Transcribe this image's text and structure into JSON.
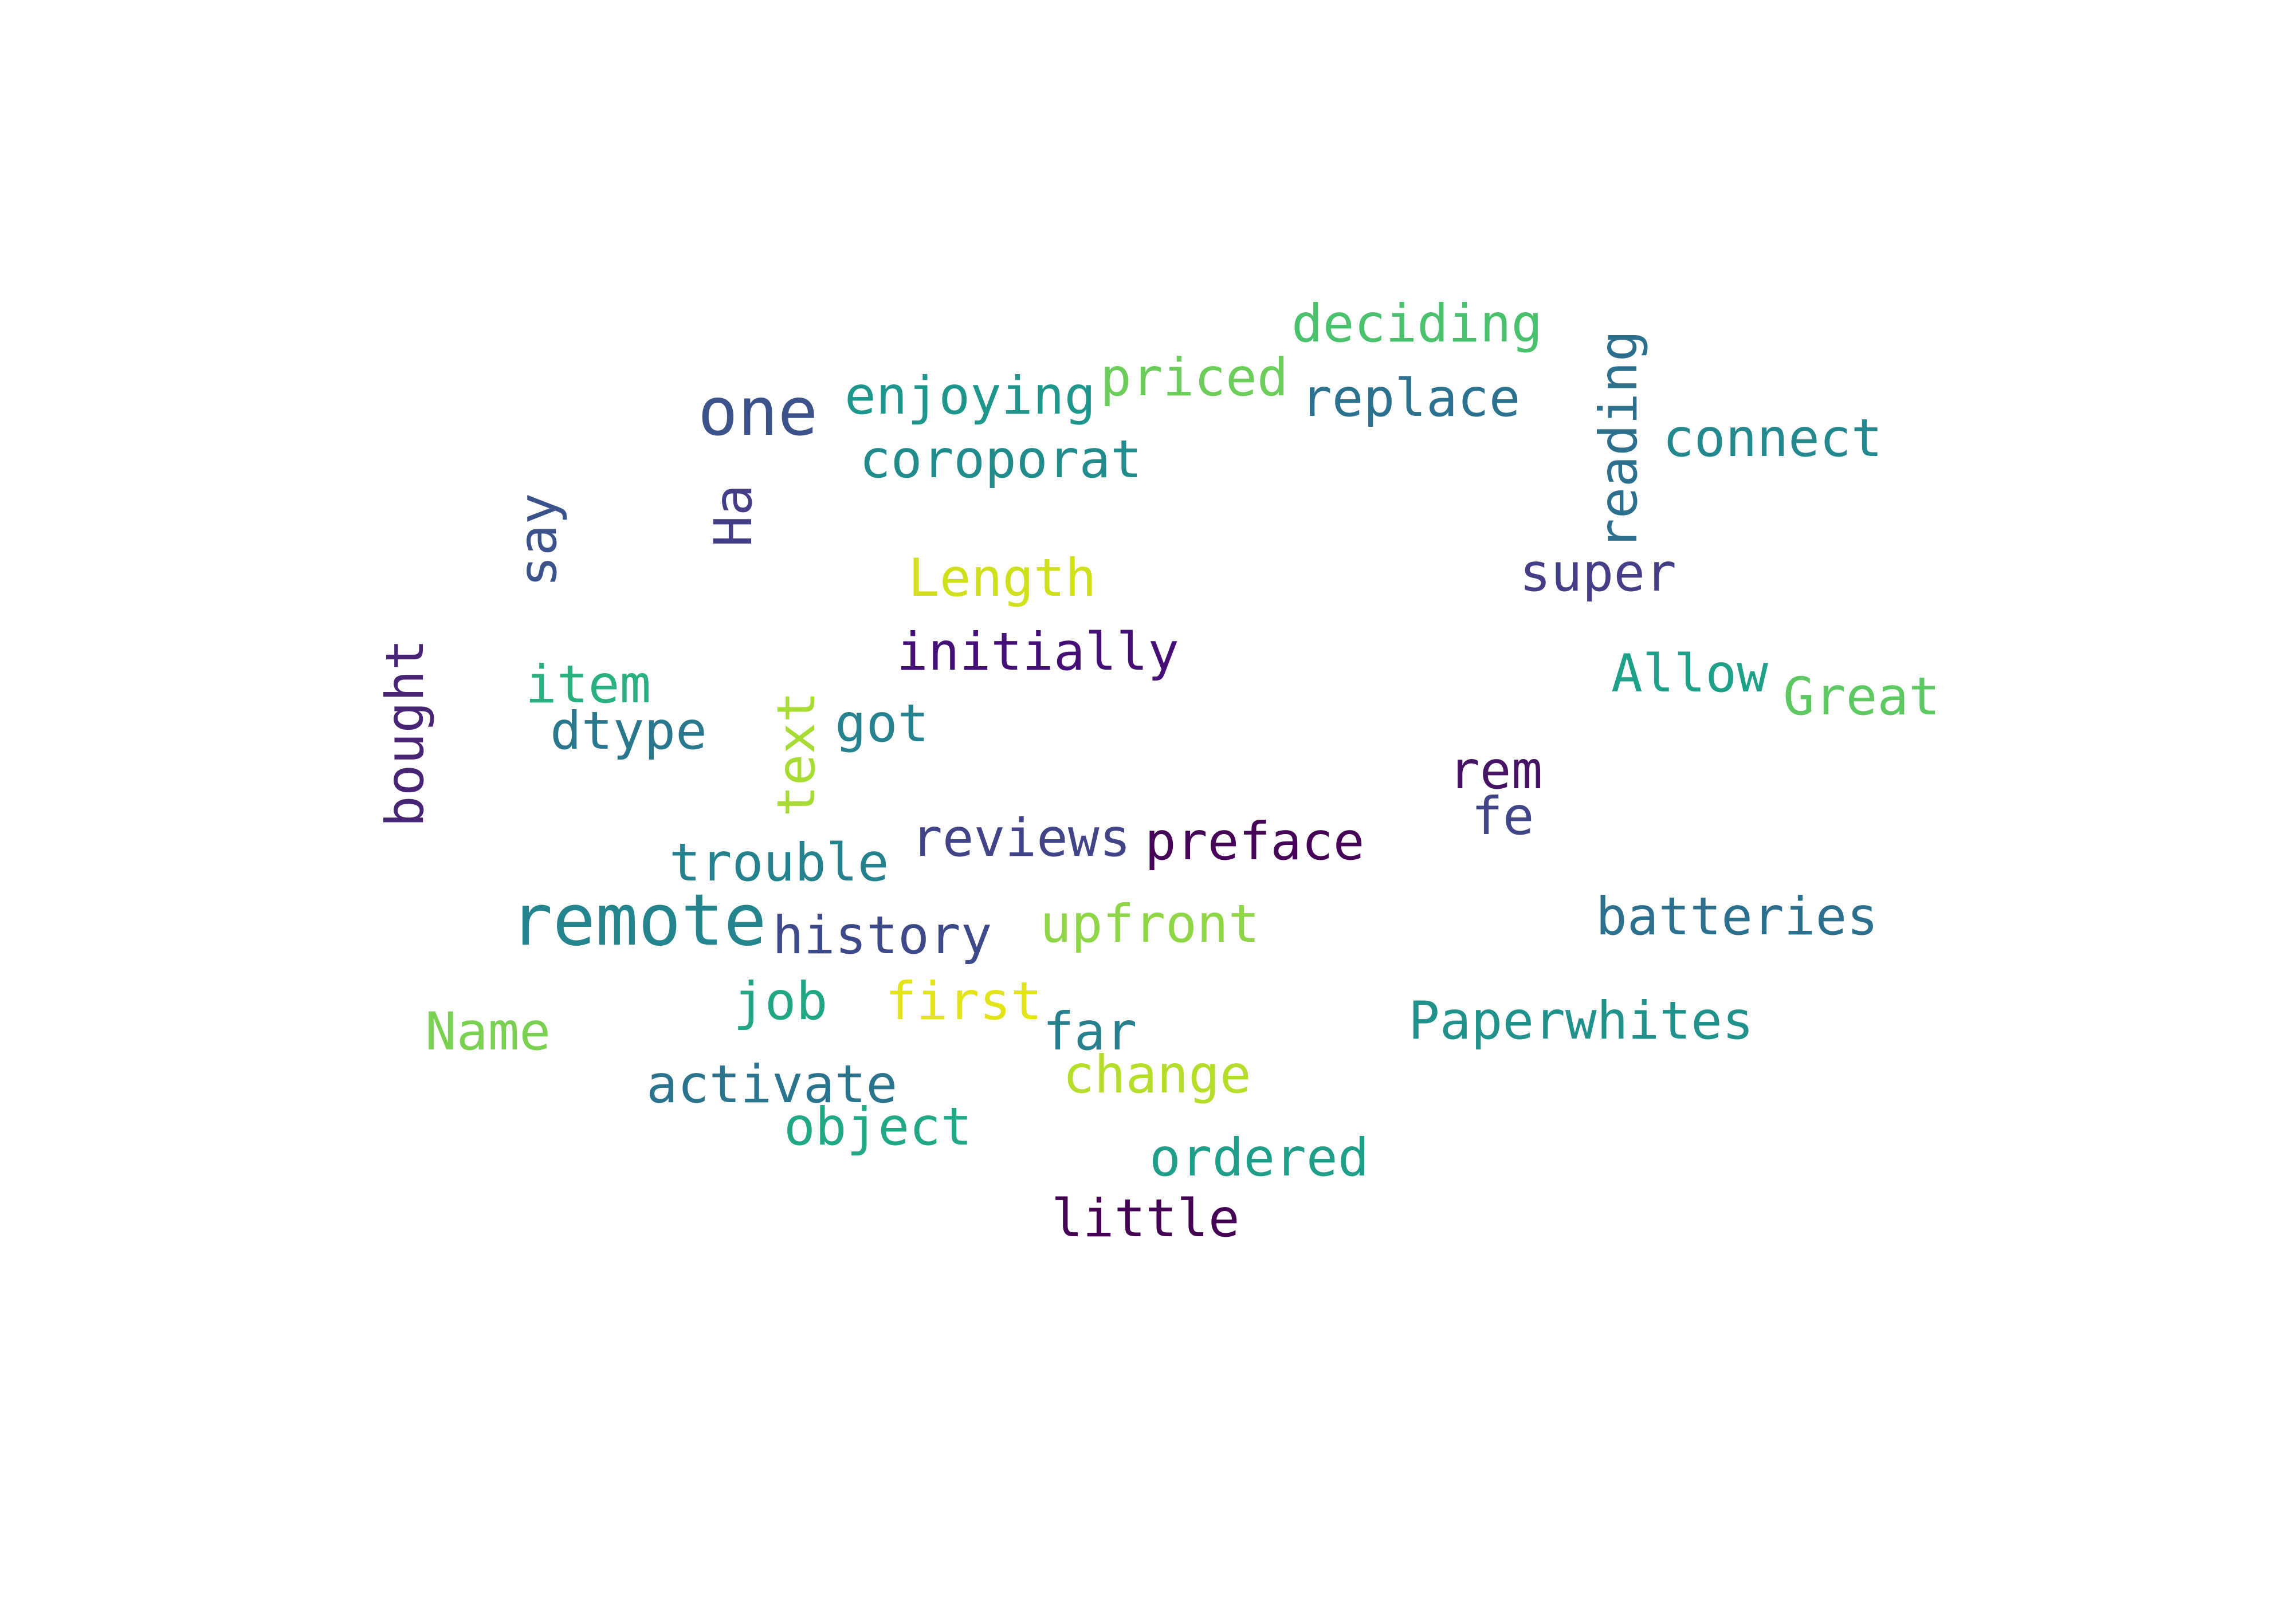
{
  "words": [
    {
      "text": "one",
      "color": "#3b528b"
    },
    {
      "text": "remote",
      "color": "#25858e"
    },
    {
      "text": "enjoying",
      "color": "#1f968b"
    },
    {
      "text": "coroporat",
      "color": "#228c8d"
    },
    {
      "text": "priced",
      "color": "#6ccd5a"
    },
    {
      "text": "deciding",
      "color": "#4ac16d"
    },
    {
      "text": "replace",
      "color": "#2c728e"
    },
    {
      "text": "connect",
      "color": "#23898e"
    },
    {
      "text": "super",
      "color": "#433e85"
    },
    {
      "text": "Length",
      "color": "#d0e11c"
    },
    {
      "text": "initially",
      "color": "#440f76"
    },
    {
      "text": "Allow",
      "color": "#1fa088"
    },
    {
      "text": "Great",
      "color": "#5ec962"
    },
    {
      "text": "item",
      "color": "#2ab07f"
    },
    {
      "text": "dtype",
      "color": "#2a788e"
    },
    {
      "text": "got",
      "color": "#26828e"
    },
    {
      "text": "rem",
      "color": "#471365"
    },
    {
      "text": "fe",
      "color": "#404688"
    },
    {
      "text": "reviews",
      "color": "#414487"
    },
    {
      "text": "preface",
      "color": "#450457"
    },
    {
      "text": "trouble",
      "color": "#26818e"
    },
    {
      "text": "history",
      "color": "#3e4989"
    },
    {
      "text": "upfront",
      "color": "#8ed645"
    },
    {
      "text": "batteries",
      "color": "#2d708e"
    },
    {
      "text": "job",
      "color": "#22a785"
    },
    {
      "text": "first",
      "color": "#e2e418"
    },
    {
      "text": "far",
      "color": "#27808e"
    },
    {
      "text": "Paperwhites",
      "color": "#21918c"
    },
    {
      "text": "Name",
      "color": "#7ad151"
    },
    {
      "text": "activate",
      "color": "#2b748e"
    },
    {
      "text": "change",
      "color": "#b5de2b"
    },
    {
      "text": "object",
      "color": "#22a884"
    },
    {
      "text": "ordered",
      "color": "#1f9e89"
    },
    {
      "text": "little",
      "color": "#440154"
    },
    {
      "text": "reading",
      "color": "#2d708e"
    },
    {
      "text": "say",
      "color": "#3b528b"
    },
    {
      "text": "Ha",
      "color": "#433e85"
    },
    {
      "text": "bought",
      "color": "#482475"
    },
    {
      "text": "text",
      "color": "#a8db34"
    }
  ]
}
